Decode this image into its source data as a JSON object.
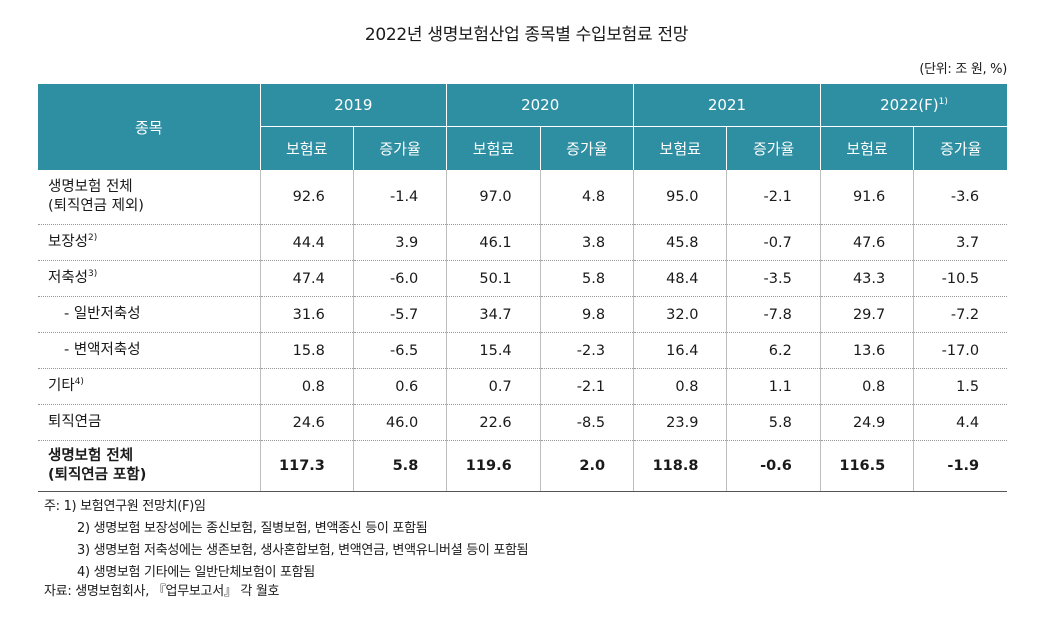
{
  "title": "2022년 생명보험산업 종목별 수입보험료 전망",
  "unit": "(단위: 조 원, %)",
  "header": {
    "category": "종목",
    "years": [
      "2019",
      "2020",
      "2021",
      "2022(F)"
    ],
    "year_note": "1)",
    "sub_premium": "보험료",
    "sub_growth": "증가율"
  },
  "rows": [
    {
      "label_line1": "생명보험 전체",
      "label_line2": "(퇴직연금 제외)",
      "values": [
        "92.6",
        "-1.4",
        "97.0",
        "4.8",
        "95.0",
        "-2.1",
        "91.6",
        "-3.6"
      ]
    },
    {
      "label": "보장성",
      "note": "2)",
      "values": [
        "44.4",
        "3.9",
        "46.1",
        "3.8",
        "45.8",
        "-0.7",
        "47.6",
        "3.7"
      ]
    },
    {
      "label": "저축성",
      "note": "3)",
      "values": [
        "47.4",
        "-6.0",
        "50.1",
        "5.8",
        "48.4",
        "-3.5",
        "43.3",
        "-10.5"
      ]
    },
    {
      "label": "-  일반저축성",
      "values": [
        "31.6",
        "-5.7",
        "34.7",
        "9.8",
        "32.0",
        "-7.8",
        "29.7",
        "-7.2"
      ]
    },
    {
      "label": "-  변액저축성",
      "values": [
        "15.8",
        "-6.5",
        "15.4",
        "-2.3",
        "16.4",
        "6.2",
        "13.6",
        "-17.0"
      ]
    },
    {
      "label": "기타",
      "note": "4)",
      "values": [
        "0.8",
        "0.6",
        "0.7",
        "-2.1",
        "0.8",
        "1.1",
        "0.8",
        "1.5"
      ]
    },
    {
      "label": "퇴직연금",
      "values": [
        "24.6",
        "46.0",
        "22.6",
        "-8.5",
        "23.9",
        "5.8",
        "24.9",
        "4.4"
      ]
    },
    {
      "label_line1": "생명보험 전체",
      "label_line2": "(퇴직연금 포함)",
      "values": [
        "117.3",
        "5.8",
        "119.6",
        "2.0",
        "118.8",
        "-0.6",
        "116.5",
        "-1.9"
      ]
    }
  ],
  "notes": [
    "주: 1)  보험연구원 전망치(F)임",
    "2)  생명보험 보장성에는 종신보험, 질병보험, 변액종신 등이 포함됨",
    "3)  생명보험 저축성에는 생존보험, 생사혼합보험, 변액연금, 변액유니버셜 등이 포함됨",
    "4)  생명보험 기타에는 일반단체보험이 포함됨"
  ],
  "source": "자료: 생명보험회사, 『업무보고서』 각 월호"
}
